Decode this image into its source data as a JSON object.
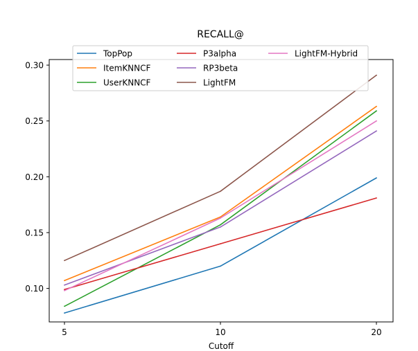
{
  "chart_data": {
    "type": "line",
    "title": "RECALL@",
    "xlabel": "Cutoff",
    "ylabel": "",
    "x": [
      5,
      10,
      20
    ],
    "x_tick_labels": [
      "5",
      "10",
      "20"
    ],
    "y_ticks": [
      0.1,
      0.15,
      0.2,
      0.25,
      0.3
    ],
    "y_tick_labels": [
      "0.10",
      "0.15",
      "0.20",
      "0.25",
      "0.30"
    ],
    "ylim": [
      0.07,
      0.305
    ],
    "grid": false,
    "legend_position": "top-center",
    "legend_columns": 3,
    "series": [
      {
        "name": "TopPop",
        "color": "#1f77b4",
        "values": [
          0.078,
          0.12,
          0.199
        ]
      },
      {
        "name": "ItemKNNCF",
        "color": "#ff7f0e",
        "values": [
          0.107,
          0.164,
          0.263
        ]
      },
      {
        "name": "UserKNNCF",
        "color": "#2ca02c",
        "values": [
          0.084,
          0.157,
          0.259
        ]
      },
      {
        "name": "P3alpha",
        "color": "#d62728",
        "values": [
          0.099,
          0.14,
          0.181
        ]
      },
      {
        "name": "RP3beta",
        "color": "#9467bd",
        "values": [
          0.103,
          0.155,
          0.241
        ]
      },
      {
        "name": "LightFM",
        "color": "#8c564b",
        "values": [
          0.125,
          0.187,
          0.291
        ]
      },
      {
        "name": "LightFM-Hybrid",
        "color": "#e377c2",
        "values": [
          0.098,
          0.163,
          0.25
        ]
      }
    ]
  }
}
